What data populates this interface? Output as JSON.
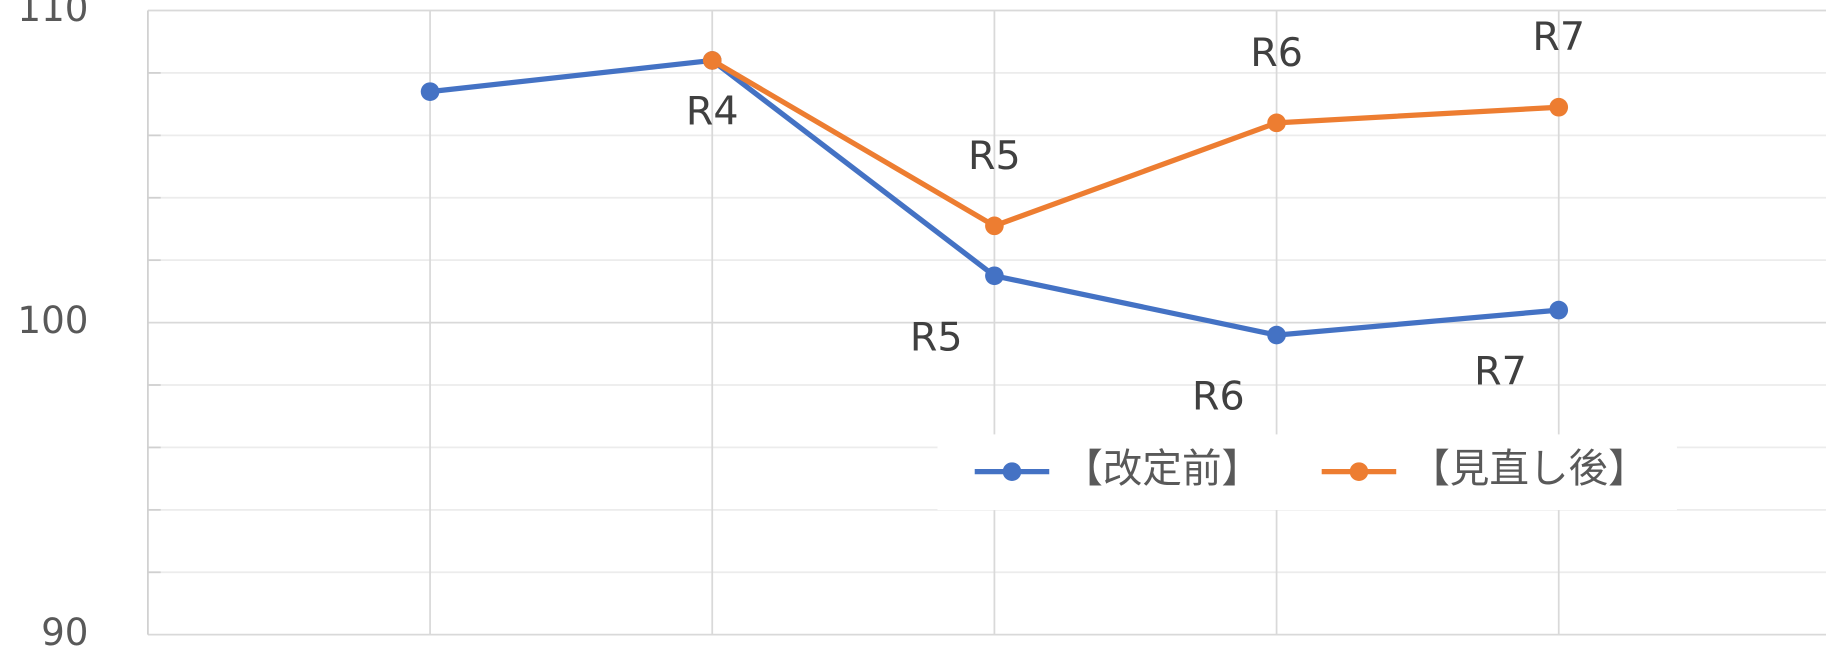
{
  "chart_data": {
    "type": "line",
    "ylim": [
      90,
      110
    ],
    "yticks": [
      90,
      100,
      110
    ],
    "y_minor_ticks": [
      92,
      94,
      96,
      98,
      102,
      104,
      106,
      108
    ],
    "grid": true,
    "legend": "lower right",
    "series": [
      {
        "name": "【改定前】",
        "color": "#4472c4",
        "values": [
          107.4,
          108.4,
          101.5,
          99.6,
          100.4
        ],
        "labels": [
          null,
          "R4",
          "R5",
          "R6",
          "R7"
        ]
      },
      {
        "name": "【見直し後】",
        "color": "#ed7d31",
        "values": [
          null,
          108.4,
          103.1,
          106.4,
          106.9
        ],
        "labels": [
          null,
          null,
          "R5",
          "R6",
          "R7"
        ]
      }
    ]
  }
}
